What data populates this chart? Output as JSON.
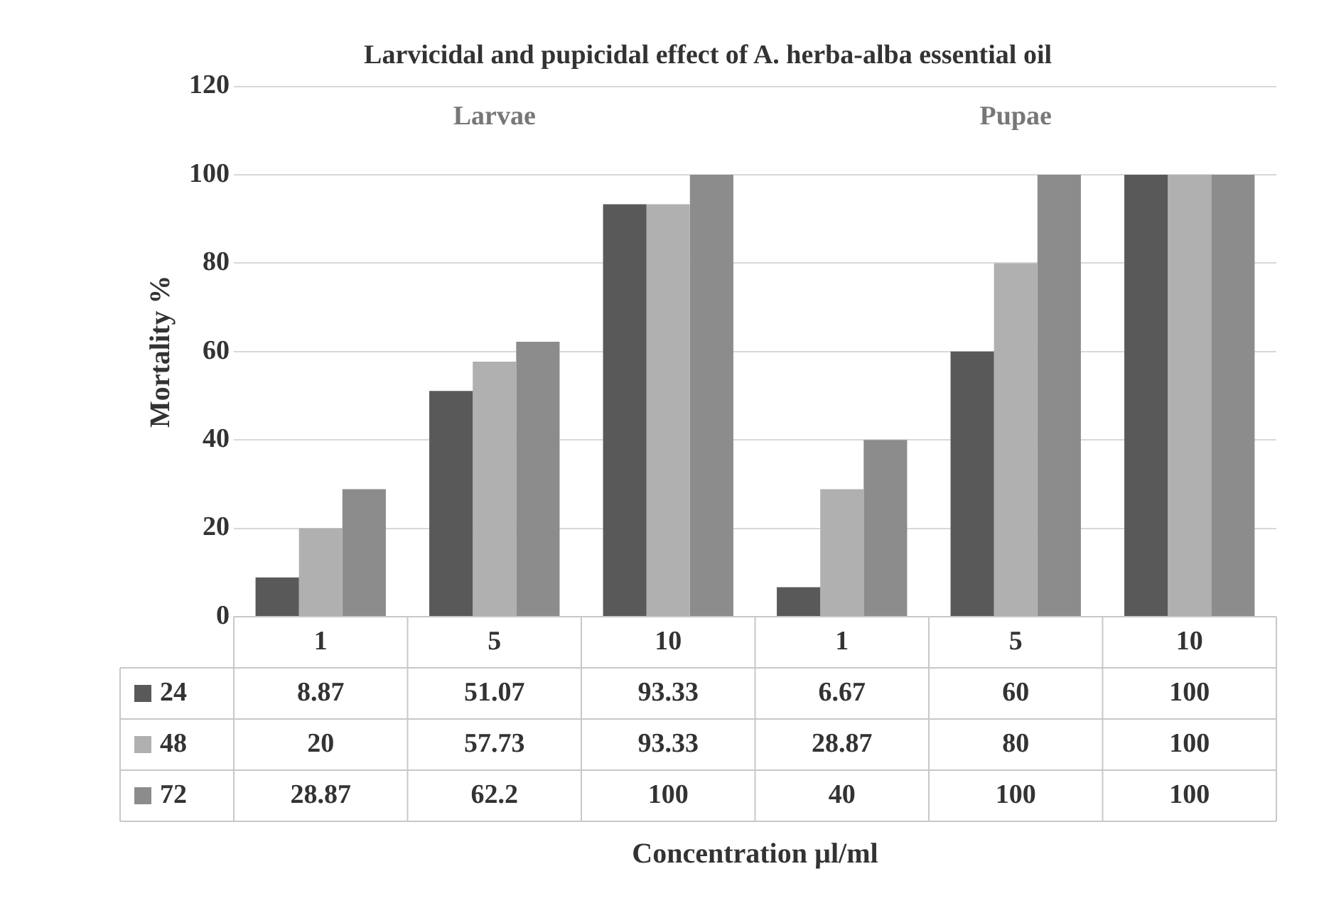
{
  "chart_data": {
    "type": "bar",
    "title": "Larvicidal and pupicidal effect of A. herba-alba essential oil",
    "ylabel": "Mortality %",
    "annotations": [
      "Larvae",
      "Pupae",
      "Concentration µl/ml"
    ],
    "categories": [
      "1",
      "5",
      "10",
      "1",
      "5",
      "10"
    ],
    "series": [
      {
        "name": "24",
        "color": "#595959",
        "values": [
          8.87,
          51.07,
          93.33,
          6.67,
          60,
          100
        ]
      },
      {
        "name": "48",
        "color": "#b0b0b0",
        "values": [
          20,
          57.73,
          93.33,
          28.87,
          80,
          100
        ]
      },
      {
        "name": "72",
        "color": "#8c8c8c",
        "values": [
          28.87,
          62.2,
          100,
          40,
          100,
          100
        ]
      }
    ],
    "ylim": [
      0,
      120
    ],
    "yticks": [
      0,
      20,
      40,
      60,
      80,
      100,
      120
    ],
    "grid": "y",
    "data_labels": true,
    "legend": "bottom left"
  }
}
